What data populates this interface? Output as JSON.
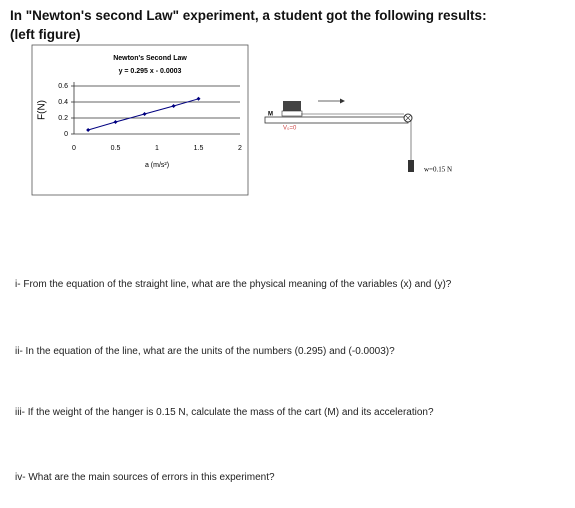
{
  "header": {
    "title": "In \"Newton's second Law\" experiment, a student got the following results:",
    "subtitle": "(left figure)"
  },
  "chart_data": {
    "type": "line",
    "title": "Newton's Second Law",
    "subtitle": "y = 0.295 x - 0.0003",
    "x_label": "a (m/s²)",
    "y_label": "F(N)",
    "x": [
      0.17,
      0.5,
      0.85,
      1.2,
      1.5
    ],
    "series": [
      {
        "name": "F",
        "color": "#000080",
        "values": [
          0.05,
          0.15,
          0.25,
          0.35,
          0.44
        ]
      }
    ],
    "xlim": [
      0,
      2
    ],
    "xticks": [
      0,
      0.5,
      1,
      1.5,
      2
    ],
    "ylim": [
      0,
      0.6
    ],
    "yticks": [
      0,
      0.2,
      0.4,
      0.6
    ],
    "grid": true
  },
  "diagram": {
    "cart_label": "M",
    "initial_velocity": "V₀=0",
    "weight_label": "w=0.15 N"
  },
  "questions": [
    "i- From the equation of the straight line, what are the physical meaning of the variables (x) and (y)?",
    "ii- In the equation of the line, what are the units of the numbers (0.295) and (-0.0003)?",
    "iii- If the weight of the hanger is 0.15 N, calculate the mass of the cart (M) and its acceleration?",
    "iv- What are the main sources of errors in this experiment?"
  ]
}
